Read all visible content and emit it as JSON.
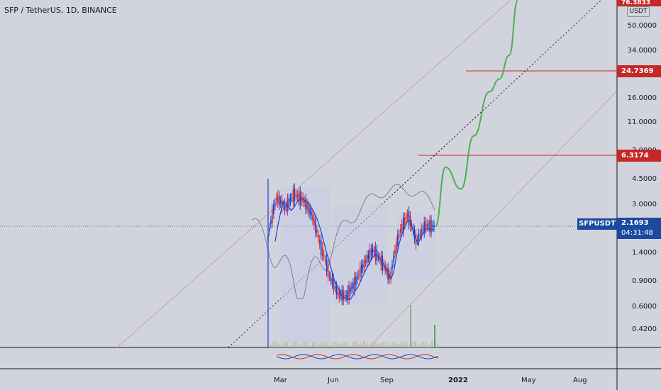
{
  "title": "SFP / TetherUS, 1D, BINANCE",
  "currency_label": "USDT",
  "symbol_label": "SFPUSDT",
  "price_scale": {
    "top_partial_tag": "76.3833",
    "ticks": [
      "50.0000",
      "34.0000",
      "24.7369",
      "16.0000",
      "11.0000",
      "7.0000",
      "6.3174",
      "4.5000",
      "3.0000",
      "2.1693",
      "1.4000",
      "0.9000",
      "0.6000",
      "0.4200"
    ],
    "current_price": "2.1693",
    "countdown": "04:31:48",
    "target_levels": [
      "24.7369",
      "6.3174"
    ]
  },
  "time_axis": {
    "labels": [
      "Mar",
      "Jun",
      "Sep",
      "2022",
      "May",
      "Aug"
    ],
    "bold_label": "2022"
  },
  "colors": {
    "background": "#d1d4dc",
    "candle_up": "#1a3fd6",
    "candle_down": "#d42a2a",
    "projection": "#4caf50",
    "target_line": "#c62828",
    "channel_line": "#c9a0b4",
    "tag_blue": "#1a4aa0",
    "tag_red": "#c62828"
  },
  "chart_data": {
    "type": "line",
    "title": "SFP / TetherUS, 1D, BINANCE",
    "y_scale": "log",
    "ylim": [
      0.35,
      76.3833
    ],
    "series": [
      {
        "values_price": [
          1.8,
          3.4,
          2.9,
          3.6,
          3.3,
          2.6,
          1.6,
          1.0,
          0.75,
          0.72,
          0.9,
          1.2,
          1.5,
          1.25,
          0.95,
          1.9,
          2.6,
          1.7,
          2.2,
          2.17
        ]
      },
      {
        "values_price": [
          2.17,
          5.5,
          3.9,
          9.0,
          18.0,
          22.0,
          32.0,
          76.0
        ]
      }
    ],
    "levels": [
      24.7369,
      6.3174
    ],
    "current_price": 2.1693,
    "grid": false,
    "legend": "none"
  }
}
